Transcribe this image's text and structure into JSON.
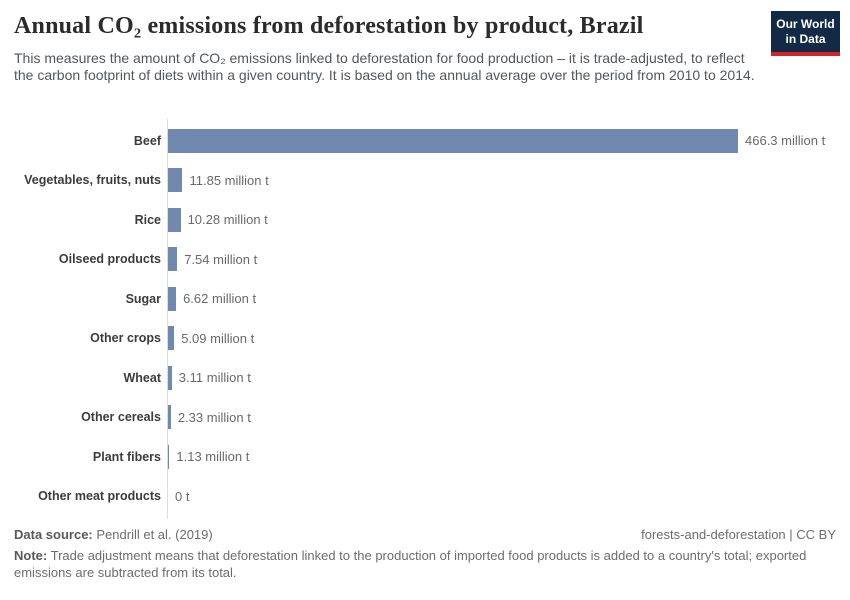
{
  "header": {
    "title": "Annual CO₂ emissions from deforestation by product, Brazil",
    "subtitle": "This measures the amount of CO₂ emissions linked to deforestation for food production – it is trade-adjusted, to reflect the carbon footprint of diets within a given country. It is based on the annual average over the period from 2010 to 2014.",
    "logo": {
      "line1": "Our World",
      "line2": "in Data"
    }
  },
  "chart_data": {
    "type": "bar",
    "orientation": "horizontal",
    "title": "Annual CO₂ emissions from deforestation by product, Brazil",
    "unit": "million t",
    "xlim": [
      0,
      466.3
    ],
    "grid": false,
    "legend": "none",
    "categories": [
      "Beef",
      "Vegetables, fruits, nuts",
      "Rice",
      "Oilseed products",
      "Sugar",
      "Other crops",
      "Wheat",
      "Other cereals",
      "Plant fibers",
      "Other meat products"
    ],
    "values": [
      466.3,
      11.85,
      10.28,
      7.54,
      6.62,
      5.09,
      3.11,
      2.33,
      1.13,
      0
    ],
    "value_labels": [
      "466.3 million t",
      "11.85 million t",
      "10.28 million t",
      "7.54 million t",
      "6.62 million t",
      "5.09 million t",
      "3.11 million t",
      "2.33 million t",
      "1.13 million t",
      "0 t"
    ]
  },
  "footer": {
    "data_source_label": "Data source:",
    "data_source": "Pendrill et al. (2019)",
    "attribution": "forests-and-deforestation | CC BY",
    "note_label": "Note:",
    "note": "Trade adjustment means that deforestation linked to the production of imported food products is added to a country's total; exported emissions are subtracted from its total."
  },
  "colors": {
    "bar": "#7189ae",
    "axis_line": "#dcdcdc",
    "logo_bg": "#132a47",
    "logo_red": "#d0232a"
  }
}
